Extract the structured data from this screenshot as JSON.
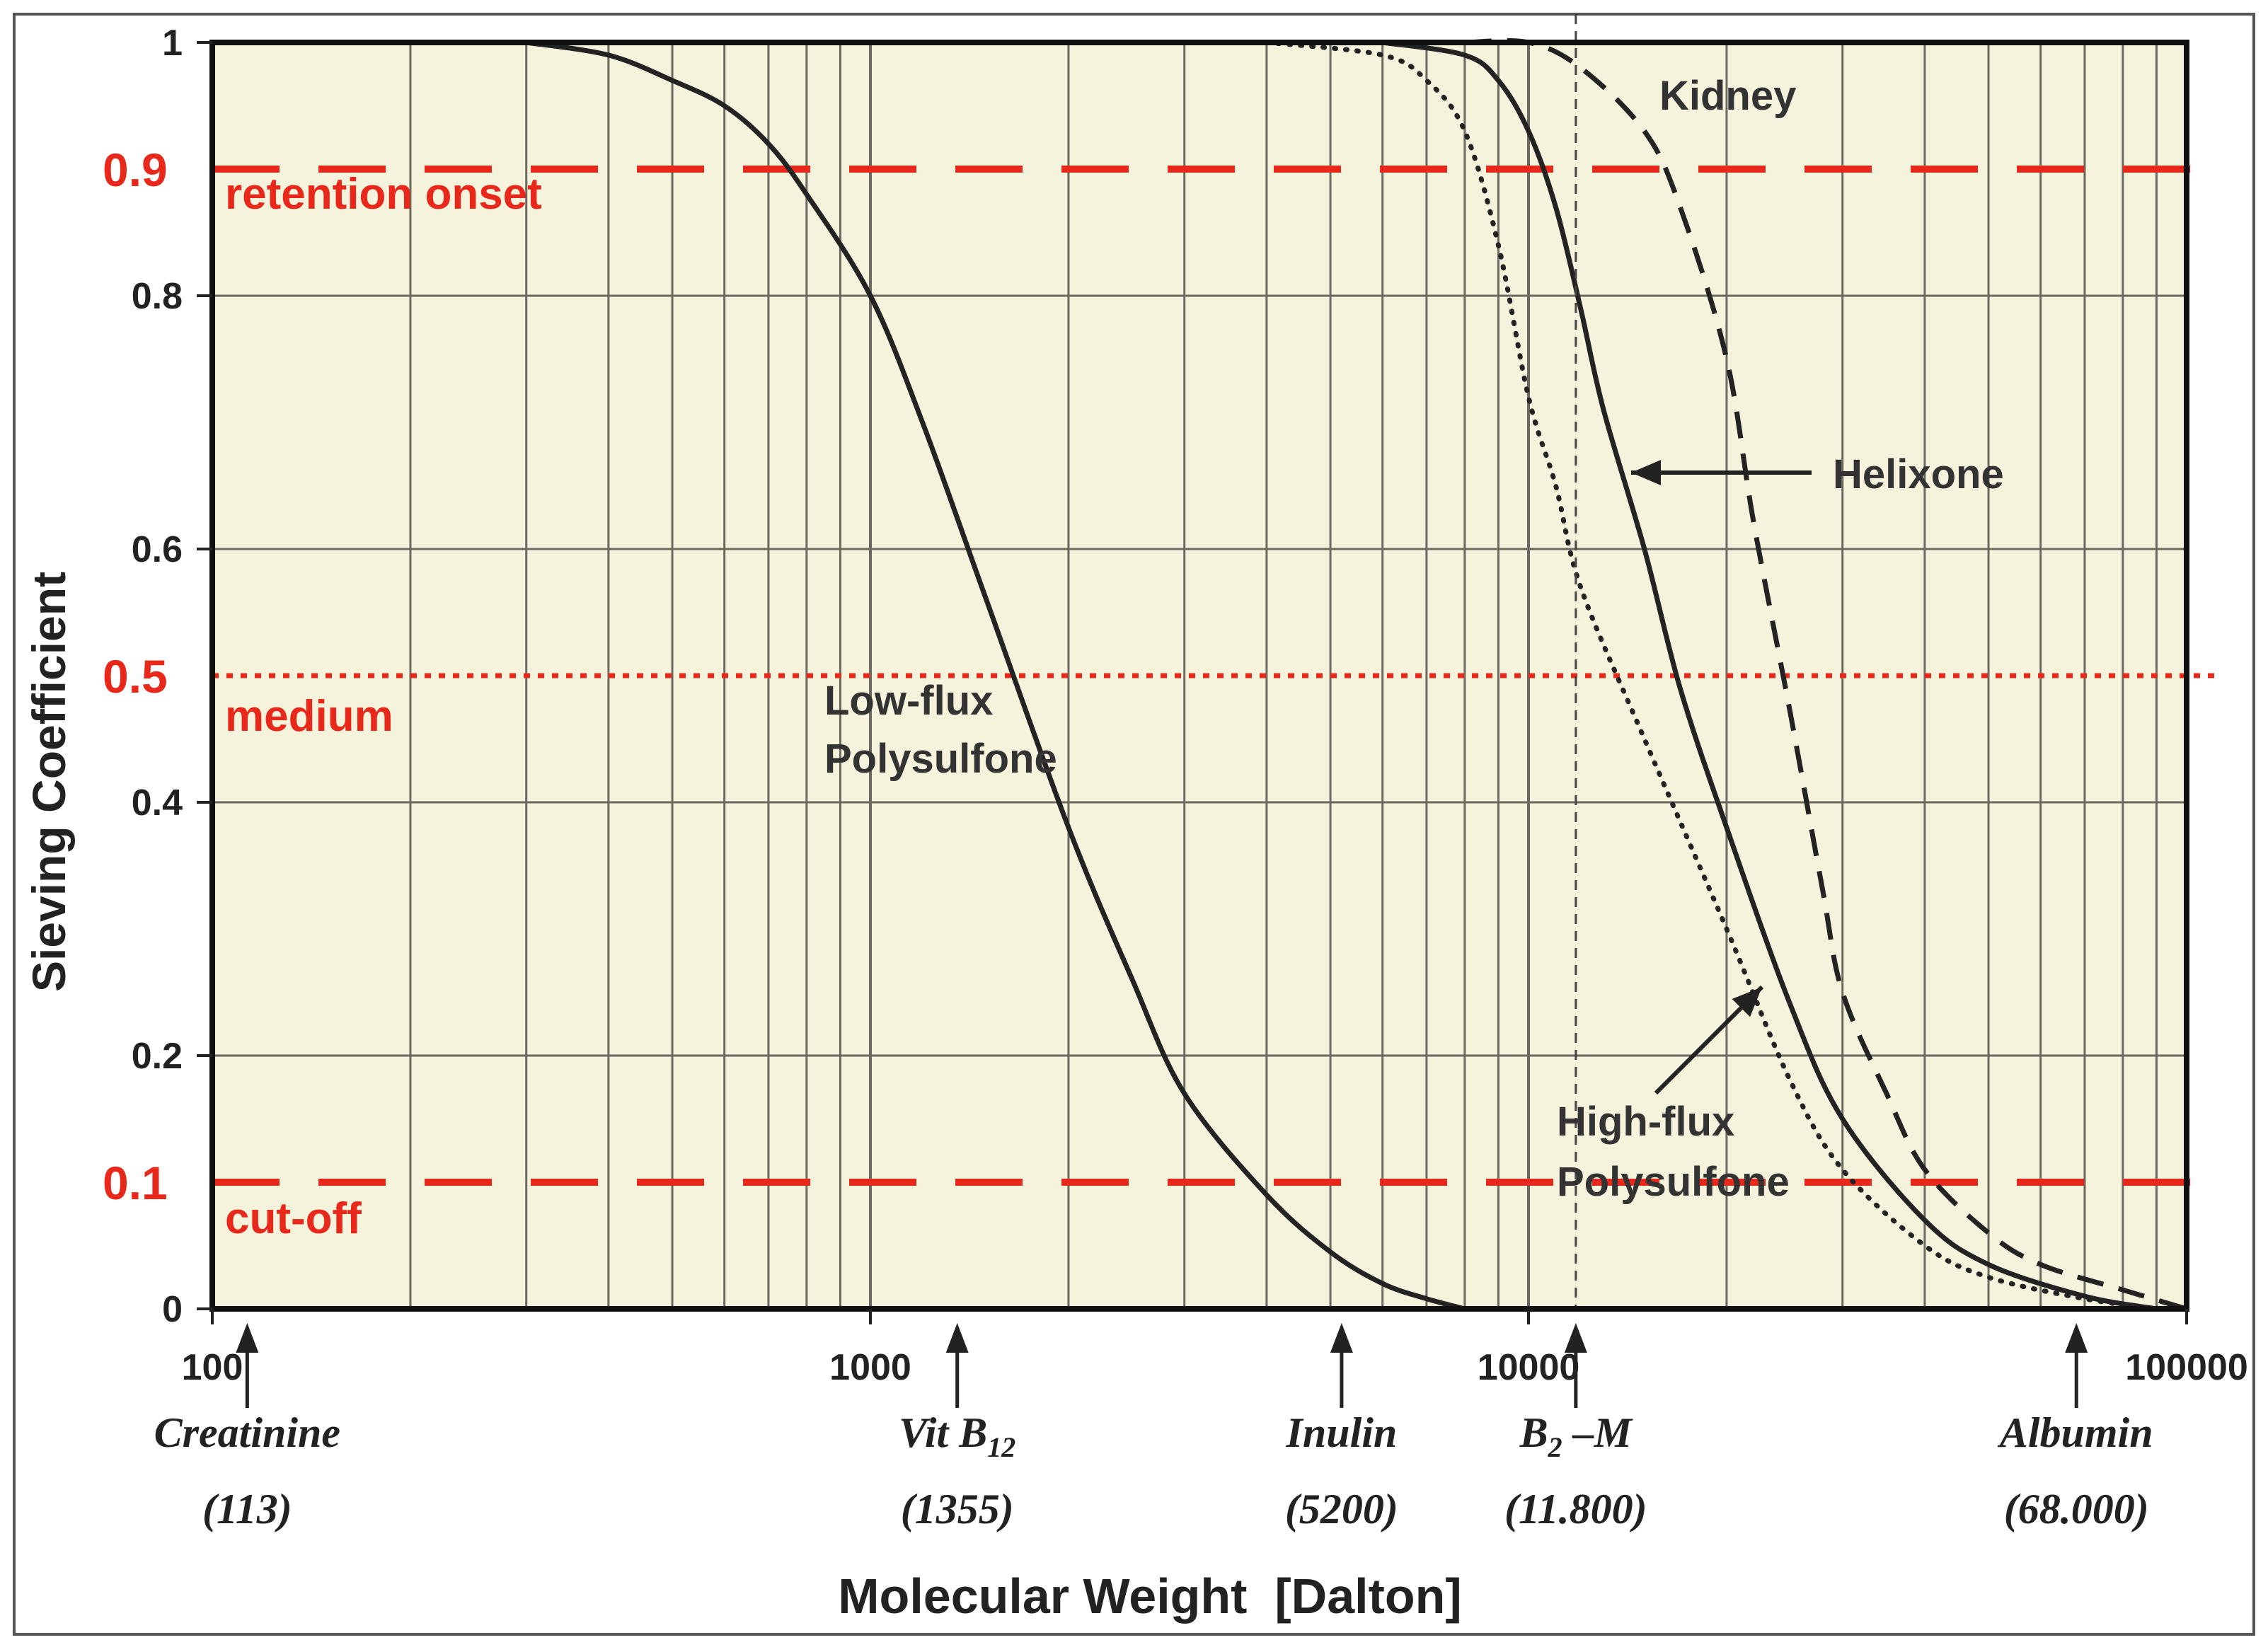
{
  "chart_data": {
    "type": "line",
    "xscale": "log",
    "xlim": [
      100,
      100000
    ],
    "ylim": [
      0,
      1
    ],
    "xlabel": "Molecular Weight  [Dalton]",
    "ylabel": "Sieving Coefficient",
    "x_ticks": [
      {
        "value": 100,
        "label": "100"
      },
      {
        "value": 1000,
        "label": "1000"
      },
      {
        "value": 10000,
        "label": "10000"
      },
      {
        "value": 100000,
        "label": "100000"
      }
    ],
    "y_ticks": [
      {
        "value": 0,
        "label": "0"
      },
      {
        "value": 0.2,
        "label": "0.2"
      },
      {
        "value": 0.4,
        "label": "0.4"
      },
      {
        "value": 0.6,
        "label": "0.6"
      },
      {
        "value": 0.8,
        "label": "0.8"
      },
      {
        "value": 1,
        "label": "1"
      }
    ],
    "grid": true,
    "series": [
      {
        "name": "Low-flux Polysulfone",
        "style": "solid",
        "x": [
          300,
          400,
          500,
          600,
          700,
          800,
          1000,
          1200,
          1500,
          2000,
          2500,
          3000,
          4000,
          5000,
          6000,
          7000,
          8000
        ],
        "y": [
          1.0,
          0.99,
          0.97,
          0.95,
          0.92,
          0.88,
          0.8,
          0.7,
          0.56,
          0.38,
          0.26,
          0.17,
          0.09,
          0.045,
          0.02,
          0.008,
          0.0
        ]
      },
      {
        "name": "Helixone",
        "style": "solid",
        "x": [
          6000,
          8000,
          9000,
          10000,
          11000,
          12000,
          13000,
          15000,
          17000,
          20000,
          25000,
          30000,
          40000,
          50000,
          70000,
          90000
        ],
        "y": [
          1.0,
          0.99,
          0.97,
          0.93,
          0.87,
          0.79,
          0.71,
          0.6,
          0.49,
          0.38,
          0.24,
          0.15,
          0.07,
          0.035,
          0.01,
          0.0
        ]
      },
      {
        "name": "High-flux Polysulfone",
        "style": "dotted",
        "x": [
          4000,
          6000,
          7000,
          8000,
          9000,
          10000,
          11000,
          12000,
          15000,
          20000,
          25000,
          30000,
          40000,
          50000,
          70000,
          90000
        ],
        "y": [
          1.0,
          0.99,
          0.97,
          0.93,
          0.84,
          0.72,
          0.65,
          0.57,
          0.45,
          0.3,
          0.18,
          0.11,
          0.05,
          0.025,
          0.008,
          0.0
        ]
      },
      {
        "name": "Kidney",
        "style": "dashed",
        "x": [
          8000,
          10000,
          12000,
          15000,
          17000,
          20000,
          22000,
          25000,
          28000,
          30000,
          35000,
          40000,
          50000,
          60000,
          80000,
          100000
        ],
        "y": [
          1.0,
          1.0,
          0.98,
          0.93,
          0.87,
          0.75,
          0.62,
          0.47,
          0.33,
          0.25,
          0.17,
          0.11,
          0.06,
          0.035,
          0.015,
          0.0
        ]
      }
    ],
    "curve_labels": [
      {
        "series": "Kidney",
        "lines": [
          "Kidney"
        ]
      },
      {
        "series": "Helixone",
        "lines": [
          "Helixone"
        ]
      },
      {
        "series": "Low-flux Polysulfone",
        "lines": [
          "Low-flux",
          "Polysulfone"
        ]
      },
      {
        "series": "High-flux Polysulfone",
        "lines": [
          "High-flux",
          "Polysulfone"
        ]
      }
    ],
    "reference_lines": [
      {
        "y": 0.9,
        "value_label": "0.9",
        "label": "retention onset",
        "style": "dashed",
        "color": "#e8281a"
      },
      {
        "y": 0.5,
        "value_label": "0.5",
        "label": "medium",
        "style": "dotted",
        "color": "#e8281a"
      },
      {
        "y": 0.1,
        "value_label": "0.1",
        "label": "cut-off",
        "style": "dashed",
        "color": "#e8281a"
      }
    ],
    "markers": [
      {
        "name": "Creatinine",
        "mw": 113,
        "mw_label": "(113)"
      },
      {
        "name": "Vit B",
        "name_sub": "12",
        "mw": 1355,
        "mw_label": "(1355)"
      },
      {
        "name": "Inulin",
        "mw": 5200,
        "mw_label": "(5200)"
      },
      {
        "name": "B",
        "name_sub": "2",
        "name_suffix": " –M",
        "mw": 11800,
        "mw_label": "(11.800)"
      },
      {
        "name": "Albumin",
        "mw": 68000,
        "mw_label": "(68.000)"
      }
    ],
    "colors": {
      "background": "#f5f3dc",
      "grid": "#6a6a60",
      "curve": "#232323",
      "reference": "#e8281a"
    }
  }
}
